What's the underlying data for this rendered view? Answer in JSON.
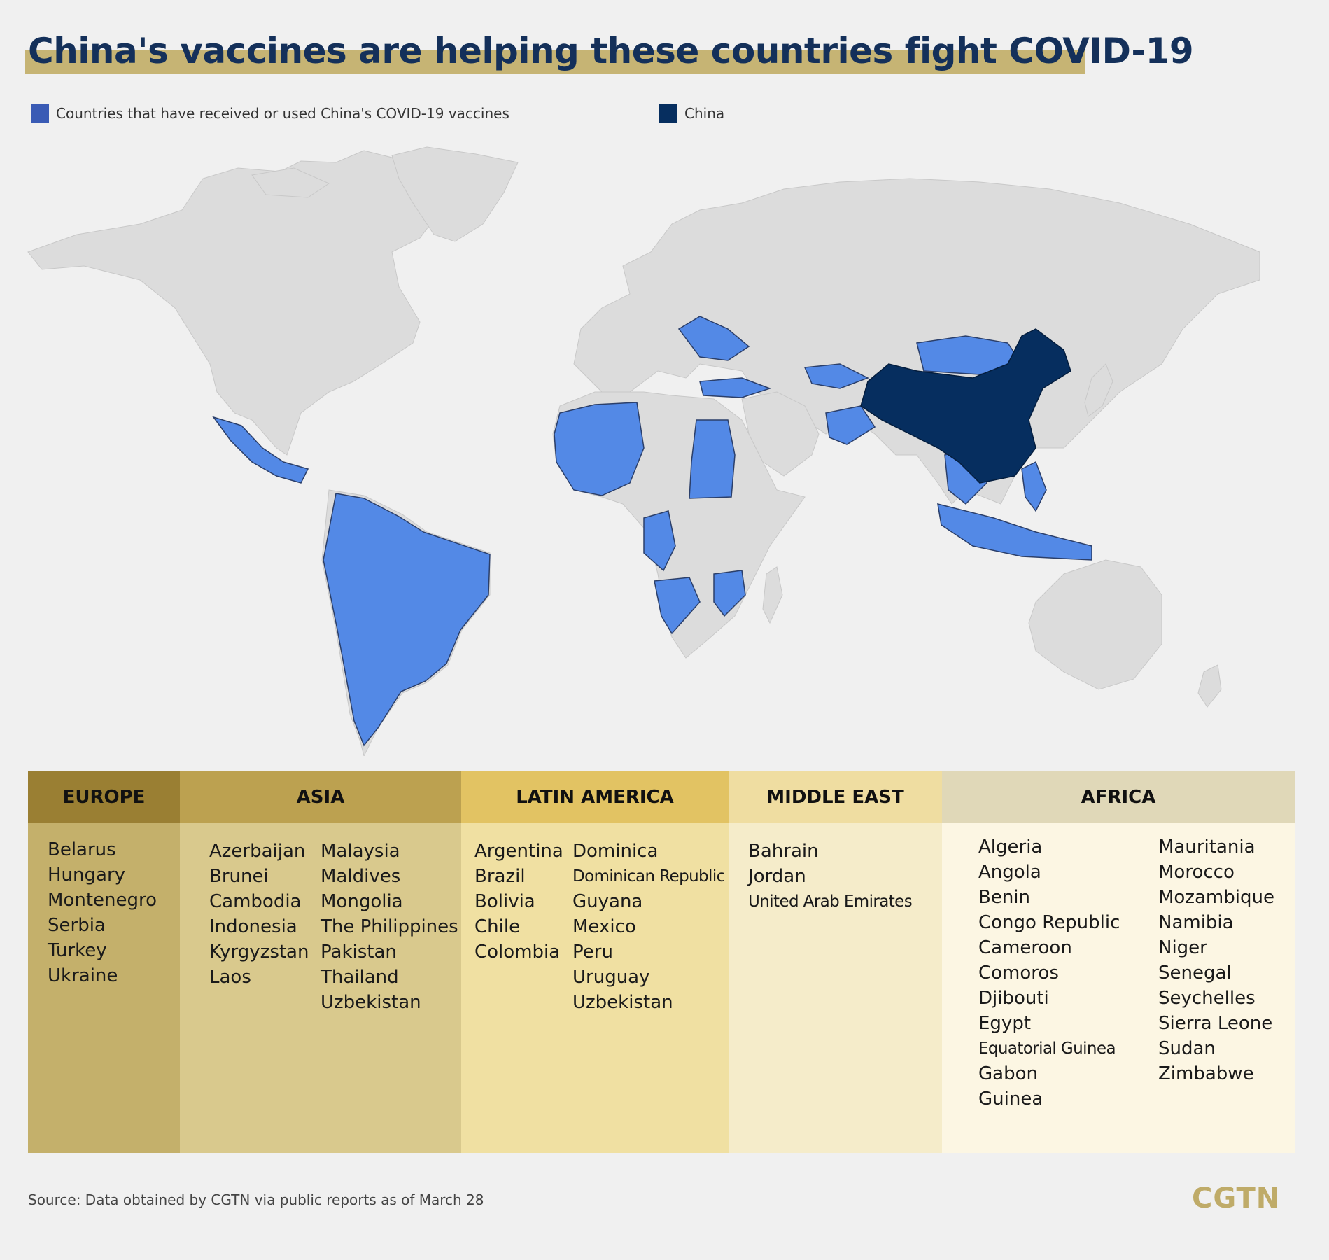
{
  "title": "China's vaccines are helping these countries fight COVID-19",
  "legend": {
    "vaccine_label": "Countries that have received or used China's COVID-19 vaccines",
    "china_label": "China"
  },
  "colors": {
    "background": "#f0f0f0",
    "land": "#dcdcdc",
    "vaccine_countries": "#5389e6",
    "vaccine_legend": "#3a5bb5",
    "china": "#062e5f",
    "title_bar": "#c6b474",
    "title_text": "#14305a",
    "europe_head": "#9a7f33",
    "europe_body": "#c4b06b",
    "asia_head": "#bca150",
    "asia_body": "#d9c98d",
    "latam_head": "#e2c363",
    "latam_body": "#f0e0a2",
    "mideast_head": "#efdda1",
    "mideast_body": "#f5ecca",
    "africa_head": "#e0d8b8",
    "africa_body": "#fcf6e3",
    "logo": "#bfab68"
  },
  "regions": {
    "europe": {
      "heading": "EUROPE",
      "col1": [
        "Belarus",
        "Hungary",
        "Montenegro",
        "Serbia",
        "Turkey",
        "Ukraine"
      ]
    },
    "asia": {
      "heading": "ASIA",
      "col1": [
        "Azerbaijan",
        "Brunei",
        "Cambodia",
        "Indonesia",
        "Kyrgyzstan",
        "Laos"
      ],
      "col2": [
        "Malaysia",
        "Maldives",
        "Mongolia",
        "The Philippines",
        "Pakistan",
        "Thailand",
        "Uzbekistan"
      ]
    },
    "latin_america": {
      "heading": "LATIN AMERICA",
      "col1": [
        "Argentina",
        "Brazil",
        "Bolivia",
        "Chile",
        "Colombia"
      ],
      "col2": [
        "Dominica",
        "Dominican Republic",
        "Guyana",
        "Mexico",
        "Peru",
        "Uruguay",
        "Uzbekistan"
      ]
    },
    "middle_east": {
      "heading": "MIDDLE EAST",
      "col1": [
        "Bahrain",
        "Jordan",
        "United Arab Emirates"
      ]
    },
    "africa": {
      "heading": "AFRICA",
      "col1": [
        "Algeria",
        "Angola",
        "Benin",
        "Congo Republic",
        "Cameroon",
        "Comoros",
        "Djibouti",
        "Egypt",
        "Equatorial Guinea",
        "Gabon",
        "Guinea"
      ],
      "col2": [
        "Mauritania",
        "Morocco",
        "Mozambique",
        "Namibia",
        "Niger",
        "Senegal",
        "Seychelles",
        "Sierra Leone",
        "Sudan",
        "Zimbabwe"
      ]
    }
  },
  "source": "Source: Data obtained by CGTN via public reports as of March 28",
  "logo": "CGTN"
}
